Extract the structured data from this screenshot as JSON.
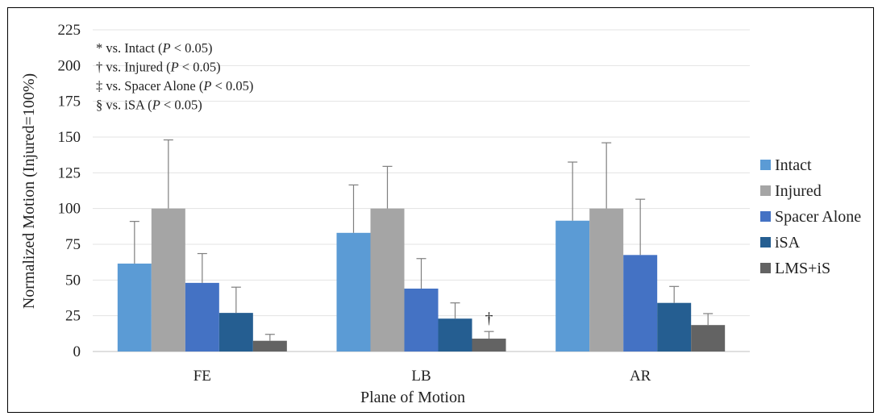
{
  "chart_data": {
    "type": "bar",
    "categories": [
      "FE",
      "LB",
      "AR"
    ],
    "series": [
      {
        "name": "Intact",
        "color": "#5b9bd5",
        "values": [
          61.5,
          83,
          91.5
        ],
        "errors": [
          29.5,
          33.5,
          41
        ]
      },
      {
        "name": "Injured",
        "color": "#a5a5a5",
        "values": [
          100,
          100,
          100
        ],
        "errors": [
          48,
          29.5,
          46
        ]
      },
      {
        "name": "Spacer Alone",
        "color": "#4472c4",
        "values": [
          48,
          44,
          67.5
        ],
        "errors": [
          20.5,
          21,
          39
        ]
      },
      {
        "name": "iSA",
        "color": "#255e91",
        "values": [
          27,
          23,
          34
        ],
        "errors": [
          18,
          11,
          11.5
        ]
      },
      {
        "name": "LMS+iS",
        "color": "#636363",
        "values": [
          7.5,
          9,
          18.5
        ],
        "errors": [
          4.5,
          5,
          8
        ]
      }
    ],
    "ylim": [
      0,
      225
    ],
    "yticks": [
      "0",
      "25",
      "50",
      "75",
      "100",
      "125",
      "150",
      "175",
      "200",
      "225"
    ],
    "xlabel": "Plane of Motion",
    "ylabel": "Normalized Motion (Injured=100%)",
    "grid": true,
    "legend_position": "right",
    "significance_markers": [
      {
        "category": "LB",
        "series": "LMS+iS",
        "symbol": "†"
      }
    ],
    "notes": [
      {
        "prefix": "* vs. Intact (",
        "italic": "P",
        "suffix": " < 0.05)"
      },
      {
        "prefix": "† vs. Injured (",
        "italic": "P",
        "suffix": " < 0.05)"
      },
      {
        "prefix": "‡ vs. Spacer Alone (",
        "italic": "P",
        "suffix": " < 0.05)"
      },
      {
        "prefix": "§ vs. iSA (",
        "italic": "P",
        "suffix": " < 0.05)"
      }
    ]
  }
}
